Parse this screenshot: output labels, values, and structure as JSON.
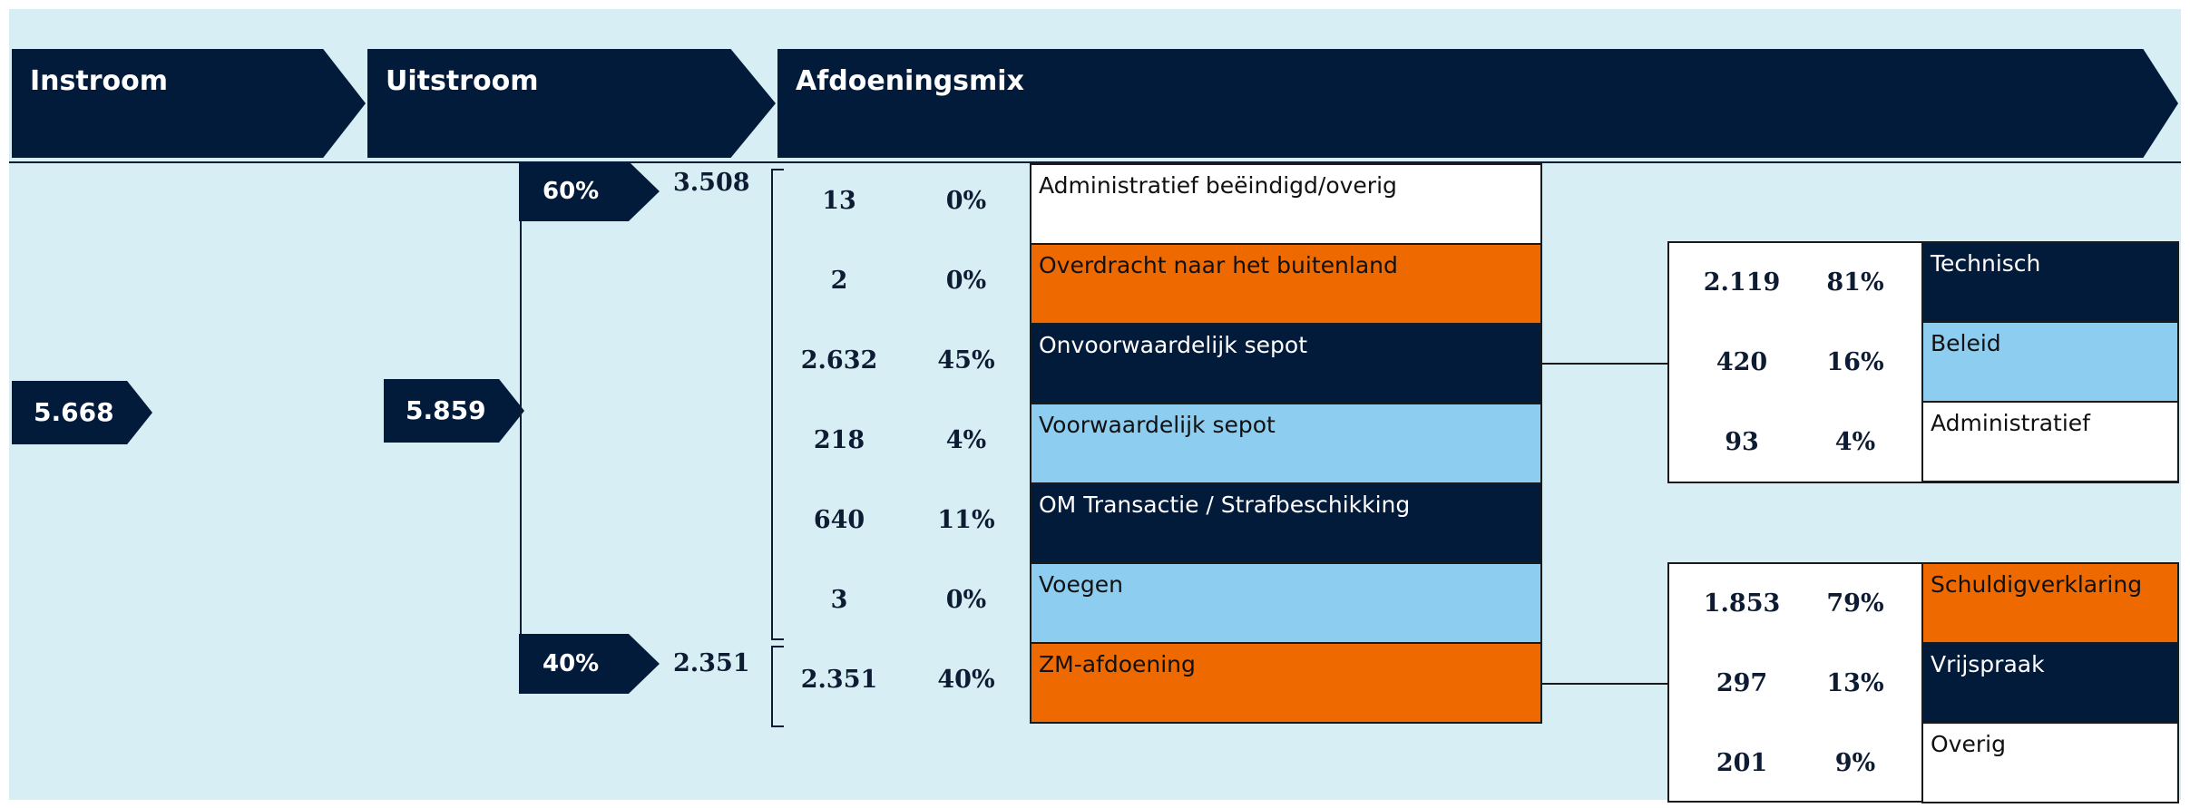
{
  "header": {
    "instroom_label": "Instroom",
    "uitstroom_label": "Uitstroom",
    "afdoeningsmix_label": "Afdoeningsmix"
  },
  "instroom_value": "5.668",
  "uitstroom_value": "5.859",
  "split": {
    "top": {
      "percent": "60%",
      "value": "3.508"
    },
    "bottom": {
      "percent": "40%",
      "value": "2.351"
    }
  },
  "categories": [
    {
      "count": "13",
      "percent": "0%",
      "label": "Administratief beëindigd/overig",
      "color": "#ffffff"
    },
    {
      "count": "2",
      "percent": "0%",
      "label": "Overdracht naar het buitenland",
      "color": "#ee6a00"
    },
    {
      "count": "2.632",
      "percent": "45%",
      "label": "Onvoorwaardelijk sepot",
      "color": "#031b3b"
    },
    {
      "count": "218",
      "percent": "4%",
      "label": "Voorwaardelijk sepot",
      "color": "#8dcdf0"
    },
    {
      "count": "640",
      "percent": "11%",
      "label": "OM Transactie / Strafbeschikking",
      "color": "#031b3b"
    },
    {
      "count": "3",
      "percent": "0%",
      "label": "Voegen",
      "color": "#8dcdf0"
    },
    {
      "count": "2.351",
      "percent": "40%",
      "label": "ZM-afdoening",
      "color": "#ee6a00"
    }
  ],
  "sepot_breakdown": [
    {
      "count": "2.119",
      "percent": "81%",
      "label": "Technisch",
      "color": "#031b3b"
    },
    {
      "count": "420",
      "percent": "16%",
      "label": "Beleid",
      "color": "#8dcdf0"
    },
    {
      "count": "93",
      "percent": "4%",
      "label": "Administratief",
      "color": "#ffffff"
    }
  ],
  "zm_breakdown": [
    {
      "count": "1.853",
      "percent": "79%",
      "label": "Schuldigverklaring",
      "color": "#ee6a00"
    },
    {
      "count": "297",
      "percent": "13%",
      "label": "Vrijspraak",
      "color": "#031b3b"
    },
    {
      "count": "201",
      "percent": "9%",
      "label": "Overig",
      "color": "#ffffff"
    }
  ]
}
